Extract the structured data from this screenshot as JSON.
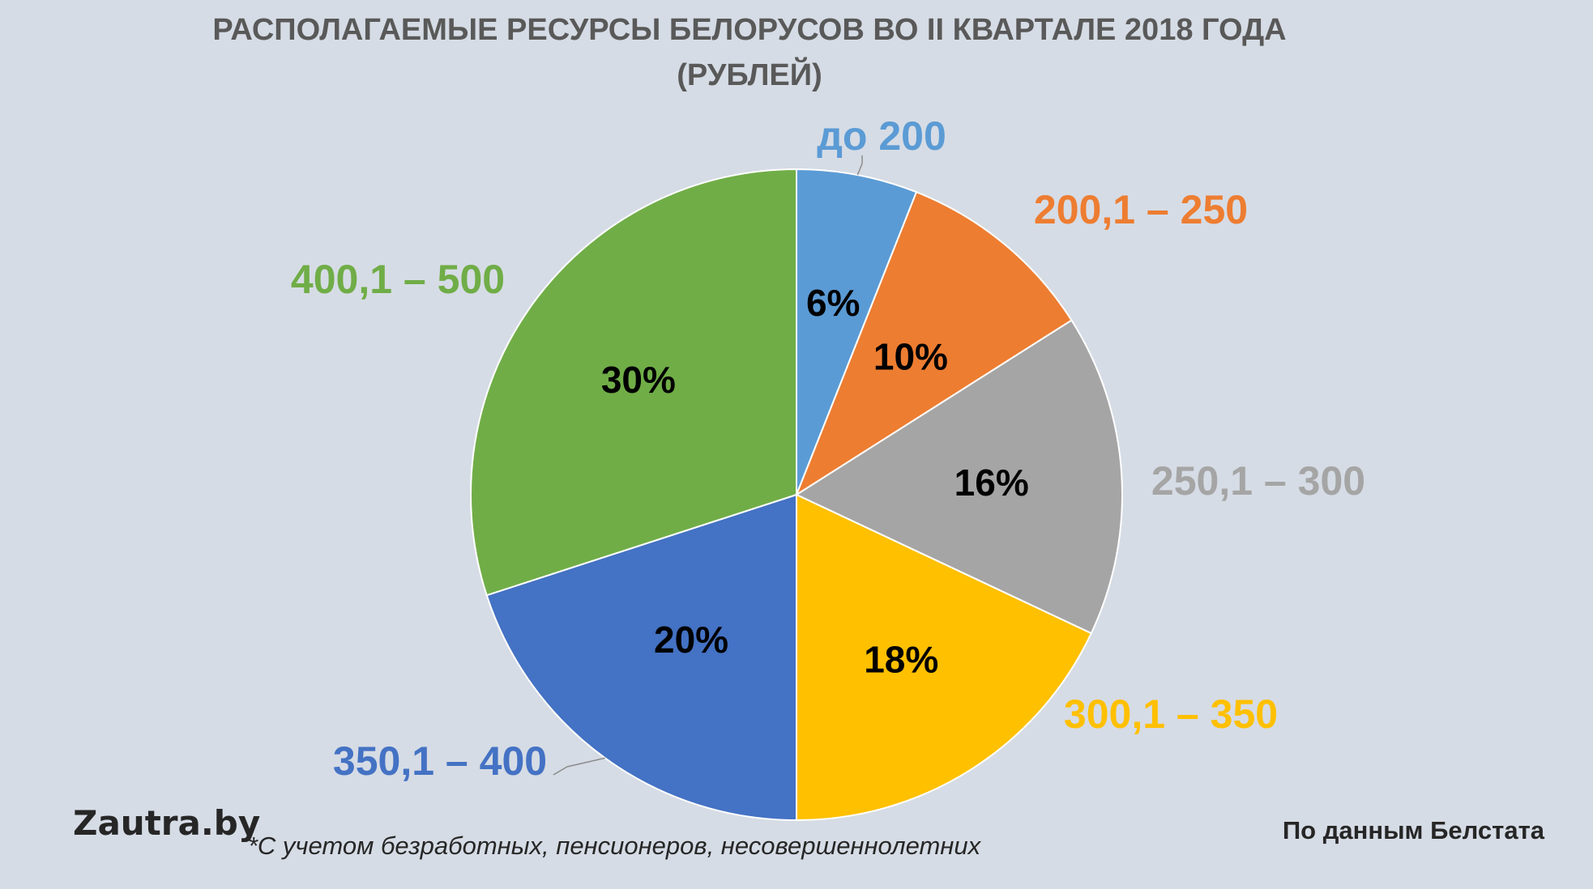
{
  "header": {
    "title_line1": "РАСПОЛАГАЕМЫЕ РЕСУРСЫ БЕЛОРУСОВ ВО II КВАРТАЛЕ 2018 ГОДА",
    "title_line2": "(РУБЛЕЙ)"
  },
  "footer": {
    "brand": "Zautra.by",
    "footnote": "*С учетом безработных, пенсионеров, несовершеннолетних",
    "source": "По данным Белстата"
  },
  "chart_data": {
    "type": "pie",
    "title": "РАСПОЛАГАЕМЫЕ РЕСУРСЫ БЕЛОРУСОВ ВО II КВАРТАЛЕ 2018 ГОДА (РУБЛЕЙ)",
    "categories": [
      "до 200",
      "200,1 – 250",
      "250,1 – 300",
      "300,1 – 350",
      "350,1 – 400",
      "400,1 – 500"
    ],
    "values": [
      6,
      10,
      16,
      18,
      20,
      30
    ],
    "value_labels": [
      "6%",
      "10%",
      "16%",
      "18%",
      "20%",
      "30%"
    ],
    "colors": [
      "#5b9bd5",
      "#ed7d31",
      "#a5a5a5",
      "#ffc000",
      "#4472c4",
      "#70ad47"
    ],
    "start": "12 o'clock",
    "direction": "clockwise",
    "legend": "none (category labels placed outside slices)"
  }
}
